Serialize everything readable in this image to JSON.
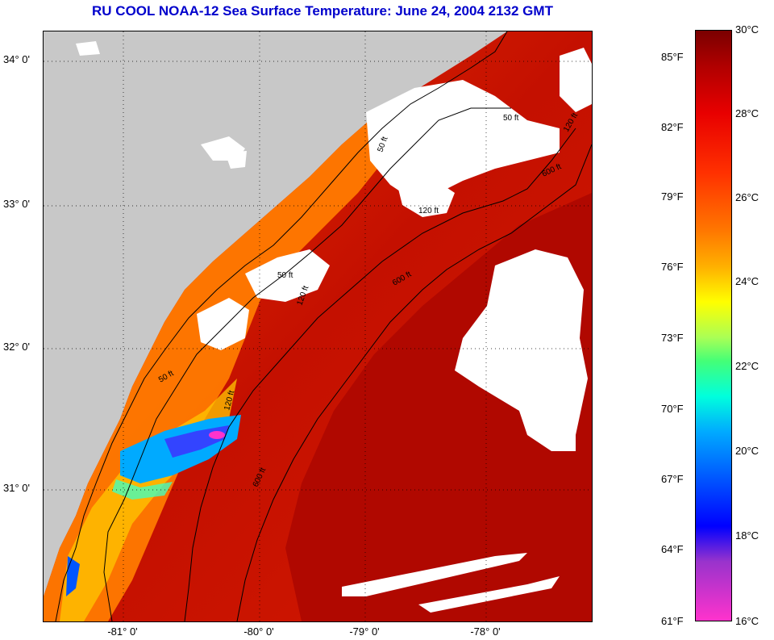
{
  "title": "RU COOL  NOAA-12  Sea Surface Temperature:  June 24, 2004 2132 GMT",
  "latitude_labels": [
    "34° 0'",
    "33° 0'",
    "32° 0'",
    "31° 0'"
  ],
  "longitude_labels": [
    "-81° 0'",
    "-80° 0'",
    "-79° 0'",
    "-78° 0'"
  ],
  "colorbar": {
    "fahrenheit_labels": [
      "85°F",
      "82°F",
      "79°F",
      "76°F",
      "73°F",
      "70°F",
      "67°F",
      "64°F",
      "61°F"
    ],
    "celsius_labels": [
      "30°C",
      "28°C",
      "26°C",
      "24°C",
      "22°C",
      "20°C",
      "18°C",
      "16°C"
    ]
  },
  "contour_labels": [
    "50 ft",
    "120 ft",
    "600 ft",
    "50 ft",
    "120 ft",
    "600 ft",
    "50 ft",
    "120 ft",
    "600 ft",
    "50 ft",
    "120 ft"
  ],
  "colors": {
    "title": "#0000cc",
    "land": "#c8c8c8",
    "cloud": "#ffffff",
    "warm_water": "#cc1100"
  }
}
